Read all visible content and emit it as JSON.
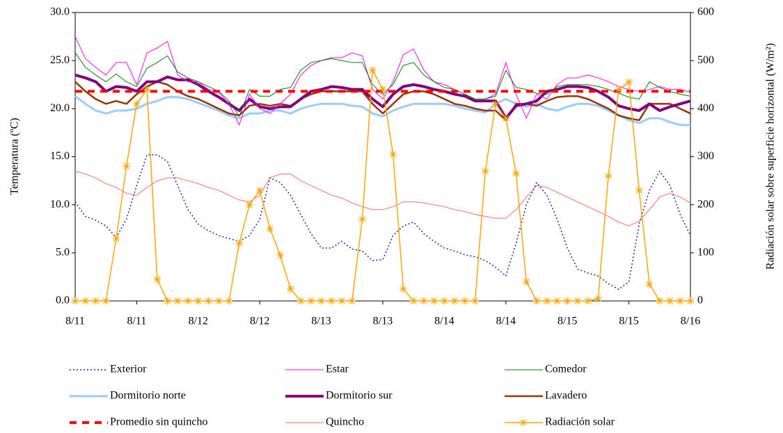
{
  "chart_data": {
    "type": "line",
    "x": [
      0,
      2,
      4,
      6,
      8,
      10,
      12,
      14,
      16,
      18,
      20,
      22,
      24,
      26,
      28,
      30,
      32,
      34,
      36,
      38,
      40,
      42,
      44,
      46,
      48,
      50,
      52,
      54,
      56,
      58,
      60,
      62,
      64,
      66,
      68,
      70,
      72,
      74,
      76,
      78,
      80,
      82,
      84,
      86,
      88,
      90,
      92,
      94,
      96,
      98,
      100,
      102,
      104,
      106,
      108,
      110,
      112,
      114,
      116,
      118,
      120
    ],
    "xlim": [
      0,
      120
    ],
    "xticks": [
      {
        "value": 0,
        "label": "8/11"
      },
      {
        "value": 12,
        "label": "8/11"
      },
      {
        "value": 24,
        "label": "8/12"
      },
      {
        "value": 36,
        "label": "8/12"
      },
      {
        "value": 48,
        "label": "8/13"
      },
      {
        "value": 60,
        "label": "8/13"
      },
      {
        "value": 72,
        "label": "8/14"
      },
      {
        "value": 84,
        "label": "8/14"
      },
      {
        "value": 96,
        "label": "8/15"
      },
      {
        "value": 108,
        "label": "8/15"
      },
      {
        "value": 120,
        "label": "8/16"
      }
    ],
    "ylabel": "Temperatura (ºC)",
    "y2label": "Radiación solar sobre superficie horizontal (W/m²)",
    "ylim": [
      0,
      30
    ],
    "yticks": [
      {
        "value": 0,
        "label": "0.0"
      },
      {
        "value": 5,
        "label": "5.0"
      },
      {
        "value": 10,
        "label": "10.0"
      },
      {
        "value": 15,
        "label": "15.0"
      },
      {
        "value": 20,
        "label": "20.0"
      },
      {
        "value": 25,
        "label": "25.0"
      },
      {
        "value": 30,
        "label": "30.0"
      }
    ],
    "y2lim": [
      0,
      600
    ],
    "y2ticks": [
      0,
      100,
      200,
      300,
      400,
      500,
      600
    ],
    "series": [
      {
        "name": "Exterior",
        "color": "#1f1fb4",
        "width": 1.5,
        "dash": "2,3",
        "values": [
          10.3,
          8.8,
          8.4,
          7.8,
          6.6,
          8.5,
          12,
          15.2,
          15.2,
          14.5,
          12,
          9.5,
          8,
          7.3,
          6.8,
          6.5,
          6.2,
          6.8,
          8.5,
          12.8,
          12.3,
          11,
          9,
          7,
          5.5,
          5.5,
          6.2,
          5.4,
          5.2,
          4.2,
          4.3,
          6.8,
          7.8,
          8.2,
          7,
          6.2,
          5.5,
          5.2,
          4.8,
          4.6,
          4.2,
          3.5,
          2.6,
          6,
          10,
          12.3,
          11,
          8.5,
          5.5,
          3.3,
          2.9,
          2.6,
          1.8,
          1.2,
          2,
          8,
          11.5,
          13.5,
          12,
          9,
          6.8
        ]
      },
      {
        "name": "Estar",
        "color": "#ff00ff",
        "width": 1,
        "values": [
          27.5,
          25.2,
          24.3,
          23.5,
          24.8,
          24.8,
          22.5,
          25.8,
          26.3,
          27,
          23.5,
          22.8,
          22.8,
          22,
          21.7,
          20.5,
          18.3,
          21.5,
          20,
          19.5,
          20.5,
          21.5,
          23.5,
          24.5,
          25,
          25.3,
          25.3,
          25.8,
          25.5,
          22,
          21,
          22.8,
          25.6,
          26.2,
          24,
          22.8,
          22.5,
          22,
          21.5,
          21,
          21,
          21.5,
          24.8,
          21.5,
          19,
          21.5,
          21,
          22.5,
          23.2,
          23.2,
          23.5,
          23.2,
          22.8,
          22.3,
          22,
          21.8,
          22,
          22.3,
          22,
          22,
          21.7
        ]
      },
      {
        "name": "Comedor",
        "color": "#008000",
        "width": 1,
        "values": [
          25.8,
          24.3,
          23.5,
          22.8,
          23.6,
          22.8,
          22.3,
          24.2,
          24.8,
          25.5,
          23.8,
          23.2,
          22.8,
          22.3,
          21.8,
          20.8,
          19.2,
          22,
          21.3,
          21.3,
          22,
          22.2,
          24,
          24.8,
          25,
          25.2,
          25,
          24.8,
          24.8,
          22.5,
          21.5,
          22.5,
          24.5,
          24.8,
          23.5,
          22.8,
          22.2,
          22,
          21.5,
          21,
          21,
          21.3,
          24,
          22.2,
          22,
          21.6,
          21.5,
          22.3,
          22.5,
          22.5,
          22.5,
          22.3,
          22,
          21.6,
          21.2,
          21,
          22.8,
          22.2,
          21.8,
          21.5,
          21.3
        ]
      },
      {
        "name": "Dormitorio norte",
        "color": "#99ccff",
        "width": 3,
        "values": [
          21.3,
          20.5,
          19.8,
          19.5,
          19.8,
          19.8,
          20,
          20.5,
          20.8,
          21.2,
          21.2,
          21,
          20.6,
          20.2,
          19.8,
          19.3,
          19,
          19.5,
          19.5,
          19.8,
          19.8,
          19.5,
          20,
          20.3,
          20.5,
          20.5,
          20.5,
          20.3,
          20.2,
          19.5,
          19.2,
          19.8,
          20.2,
          20.5,
          20.5,
          20.5,
          20.5,
          20.3,
          20,
          19.8,
          19.6,
          20.5,
          21,
          20.5,
          20.2,
          20.5,
          20,
          19.8,
          20.2,
          20.5,
          20.5,
          20.3,
          19.8,
          19.3,
          18.8,
          18.5,
          19,
          19,
          18.6,
          18.3,
          18.3
        ]
      },
      {
        "name": "Dormitorio sur",
        "color": "#800080",
        "width": 4,
        "values": [
          23.5,
          23.2,
          22.8,
          21.8,
          22.3,
          22.2,
          21.8,
          22.8,
          22.8,
          23.3,
          23,
          23,
          22.5,
          21.8,
          21.2,
          20.5,
          19.8,
          21,
          20.2,
          20,
          20.2,
          20.2,
          21,
          21.8,
          22,
          22.3,
          22.2,
          22,
          22,
          21,
          20.2,
          21.5,
          22.3,
          22.5,
          22.3,
          22,
          21.8,
          21.5,
          21.3,
          20.8,
          20.8,
          20.8,
          19,
          20.3,
          20.5,
          20.8,
          21.8,
          22,
          22.3,
          22.3,
          22.2,
          21.8,
          21.2,
          20.3,
          20,
          19.8,
          20.5,
          19.8,
          20.2,
          20.5,
          20.8
        ]
      },
      {
        "name": "Lavadero",
        "color": "#993300",
        "width": 2.5,
        "values": [
          22.8,
          21.8,
          21,
          20.5,
          20.8,
          20.5,
          21.5,
          22.3,
          22.8,
          22.5,
          21.8,
          21.3,
          21,
          20.5,
          20,
          19.5,
          19.3,
          20.3,
          20.5,
          20.3,
          20.5,
          20.3,
          21,
          21.5,
          21.8,
          21.8,
          21.8,
          21.8,
          21.8,
          20.5,
          19.5,
          20.5,
          21.5,
          21.8,
          21.8,
          21.5,
          21,
          20.5,
          20.3,
          20,
          19.8,
          19.8,
          18.8,
          20.5,
          20.5,
          20.3,
          20.8,
          21.2,
          21.3,
          21.3,
          21,
          20.5,
          20,
          19.3,
          19,
          18.8,
          20.5,
          20.5,
          20.5,
          20,
          19.5
        ]
      },
      {
        "name": "Promedio sin quincho",
        "color": "#ff0000",
        "width": 4,
        "dash": "10,8",
        "values": [
          21.8,
          21.8,
          21.8,
          21.8,
          21.8,
          21.8,
          21.8,
          21.8,
          21.8,
          21.8,
          21.8,
          21.8,
          21.8,
          21.8,
          21.8,
          21.8,
          21.8,
          21.8,
          21.8,
          21.8,
          21.8,
          21.8,
          21.8,
          21.8,
          21.8,
          21.8,
          21.8,
          21.8,
          21.8,
          21.8,
          21.8,
          21.8,
          21.8,
          21.8,
          21.8,
          21.8,
          21.8,
          21.8,
          21.8,
          21.8,
          21.8,
          21.8,
          21.8,
          21.8,
          21.8,
          21.8,
          21.8,
          21.8,
          21.8,
          21.8,
          21.8,
          21.8,
          21.8,
          21.8,
          21.8,
          21.8,
          21.8,
          21.8,
          21.8,
          21.8,
          21.8
        ]
      },
      {
        "name": "Quincho",
        "color": "#ff8080",
        "width": 1.2,
        "values": [
          13.5,
          13.2,
          12.8,
          12.2,
          11.8,
          11.2,
          11,
          11.8,
          12.5,
          12.8,
          12.8,
          12.5,
          12.2,
          11.8,
          11.5,
          11,
          10.5,
          10.3,
          11,
          12.8,
          13.2,
          13.2,
          12.5,
          12,
          11.5,
          11,
          10.7,
          10.2,
          9.8,
          9.5,
          9.5,
          9.8,
          10.3,
          10.3,
          10.2,
          10,
          9.8,
          9.5,
          9.3,
          9,
          8.8,
          8.6,
          8.6,
          9.5,
          10.8,
          12,
          11.8,
          11.3,
          10.8,
          10.3,
          9.8,
          9.3,
          8.8,
          8.2,
          7.8,
          8.3,
          9.5,
          10.8,
          11.2,
          10.8,
          10.2
        ]
      },
      {
        "name": "Radiación solar",
        "color": "#ffa500",
        "width": 1.5,
        "axis": "y2",
        "marker": "asterisk",
        "values": [
          0,
          0,
          0,
          0,
          130,
          280,
          410,
          440,
          45,
          0,
          0,
          0,
          0,
          0,
          0,
          0,
          120,
          200,
          230,
          150,
          95,
          25,
          0,
          0,
          0,
          0,
          0,
          0,
          170,
          480,
          440,
          305,
          25,
          0,
          0,
          0,
          0,
          0,
          0,
          0,
          270,
          410,
          380,
          265,
          40,
          0,
          0,
          0,
          0,
          0,
          0,
          5,
          260,
          440,
          455,
          230,
          35,
          0,
          0,
          0,
          0
        ]
      }
    ]
  }
}
